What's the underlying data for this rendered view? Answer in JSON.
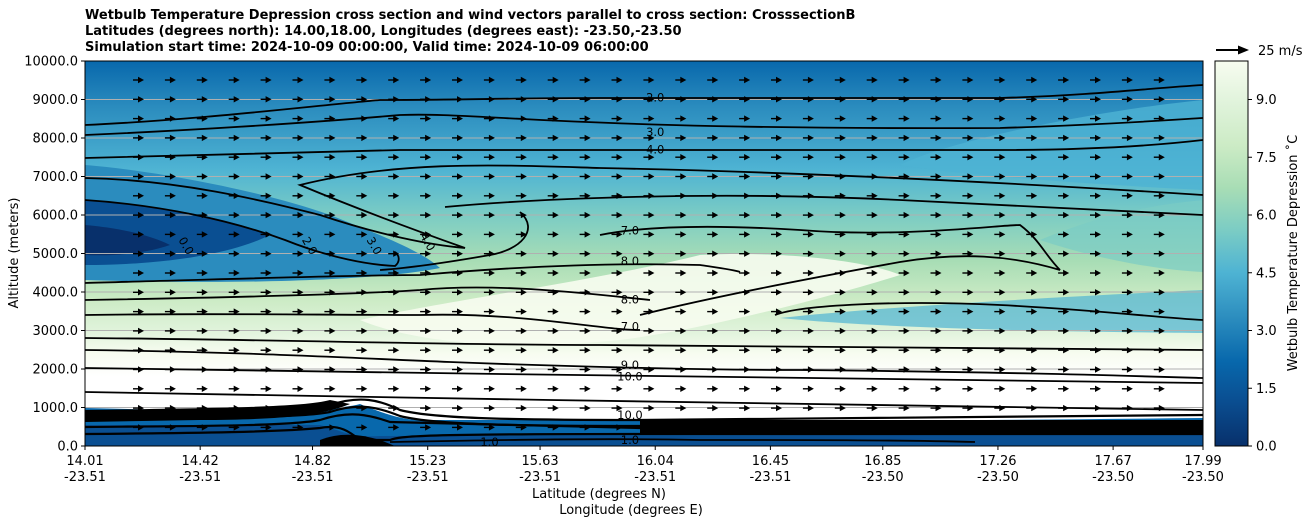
{
  "title_lines": [
    "Wetbulb Temperature Depression cross section and wind vectors parallel to cross section: CrosssectionB",
    "Latitudes (degrees north): 14.00,18.00, Longitudes (degrees east): -23.50,-23.50",
    "Simulation start time: 2024-10-09 00:00:00, Valid time: 2024-10-09 06:00:00"
  ],
  "chart_data": {
    "type": "heatmap",
    "subtype": "filled-contour cross section with contour lines and wind vectors",
    "ylabel": "Altitude (meters)",
    "xlabel_lines": [
      "Latitude (degrees N)",
      "Longitude (degrees E)"
    ],
    "ylim": [
      0,
      10000
    ],
    "yticks": [
      "0.0",
      "1000.0",
      "2000.0",
      "3000.0",
      "4000.0",
      "5000.0",
      "6000.0",
      "7000.0",
      "8000.0",
      "9000.0",
      "10000.0"
    ],
    "xticks_lat": [
      "14.01",
      "14.42",
      "14.82",
      "15.23",
      "15.63",
      "16.04",
      "16.45",
      "16.85",
      "17.26",
      "17.67",
      "17.99"
    ],
    "xticks_lon": [
      "-23.51",
      "-23.51",
      "-23.51",
      "-23.51",
      "-23.51",
      "-23.51",
      "-23.51",
      "-23.50",
      "-23.50",
      "-23.50",
      "-23.50"
    ],
    "grid": "horizontal",
    "colorbar": {
      "label": "Wetbulb Temperature Depression ˚C",
      "ticks": [
        "0.0",
        "1.5",
        "3.0",
        "4.5",
        "6.0",
        "7.5",
        "9.0"
      ],
      "range": [
        0,
        10
      ],
      "colormap": [
        "#08306b",
        "#0a4f92",
        "#0868ac",
        "#2b8cbe",
        "#4eb3d3",
        "#7bccc4",
        "#a8ddb5",
        "#ccebc5",
        "#e0f3db",
        "#f7fcf0"
      ]
    },
    "vector_key": "25 m/s",
    "contour_labels": [
      {
        "text": "2.0",
        "lat": 16.04,
        "alt": 9050
      },
      {
        "text": "3.0",
        "lat": 16.04,
        "alt": 8150
      },
      {
        "text": "4.0",
        "lat": 16.04,
        "alt": 7700
      },
      {
        "text": "7.0",
        "lat": 15.95,
        "alt": 5600
      },
      {
        "text": "8.0",
        "lat": 15.95,
        "alt": 4800
      },
      {
        "text": "8.0",
        "lat": 15.95,
        "alt": 3800
      },
      {
        "text": "7.0",
        "lat": 15.95,
        "alt": 3100
      },
      {
        "text": "9.0",
        "lat": 15.95,
        "alt": 2100
      },
      {
        "text": "10.0",
        "lat": 15.95,
        "alt": 1800
      },
      {
        "text": "10.0",
        "lat": 15.95,
        "alt": 800
      },
      {
        "text": "1.0",
        "lat": 15.95,
        "alt": 150
      },
      {
        "text": "1.0",
        "lat": 15.45,
        "alt": 100
      },
      {
        "text": "0.0",
        "lat": 14.37,
        "alt": 5200
      },
      {
        "text": "2.0",
        "lat": 14.81,
        "alt": 5200
      },
      {
        "text": "3.0",
        "lat": 15.04,
        "alt": 5200
      },
      {
        "text": "4.0",
        "lat": 15.23,
        "alt": 5300
      }
    ]
  }
}
